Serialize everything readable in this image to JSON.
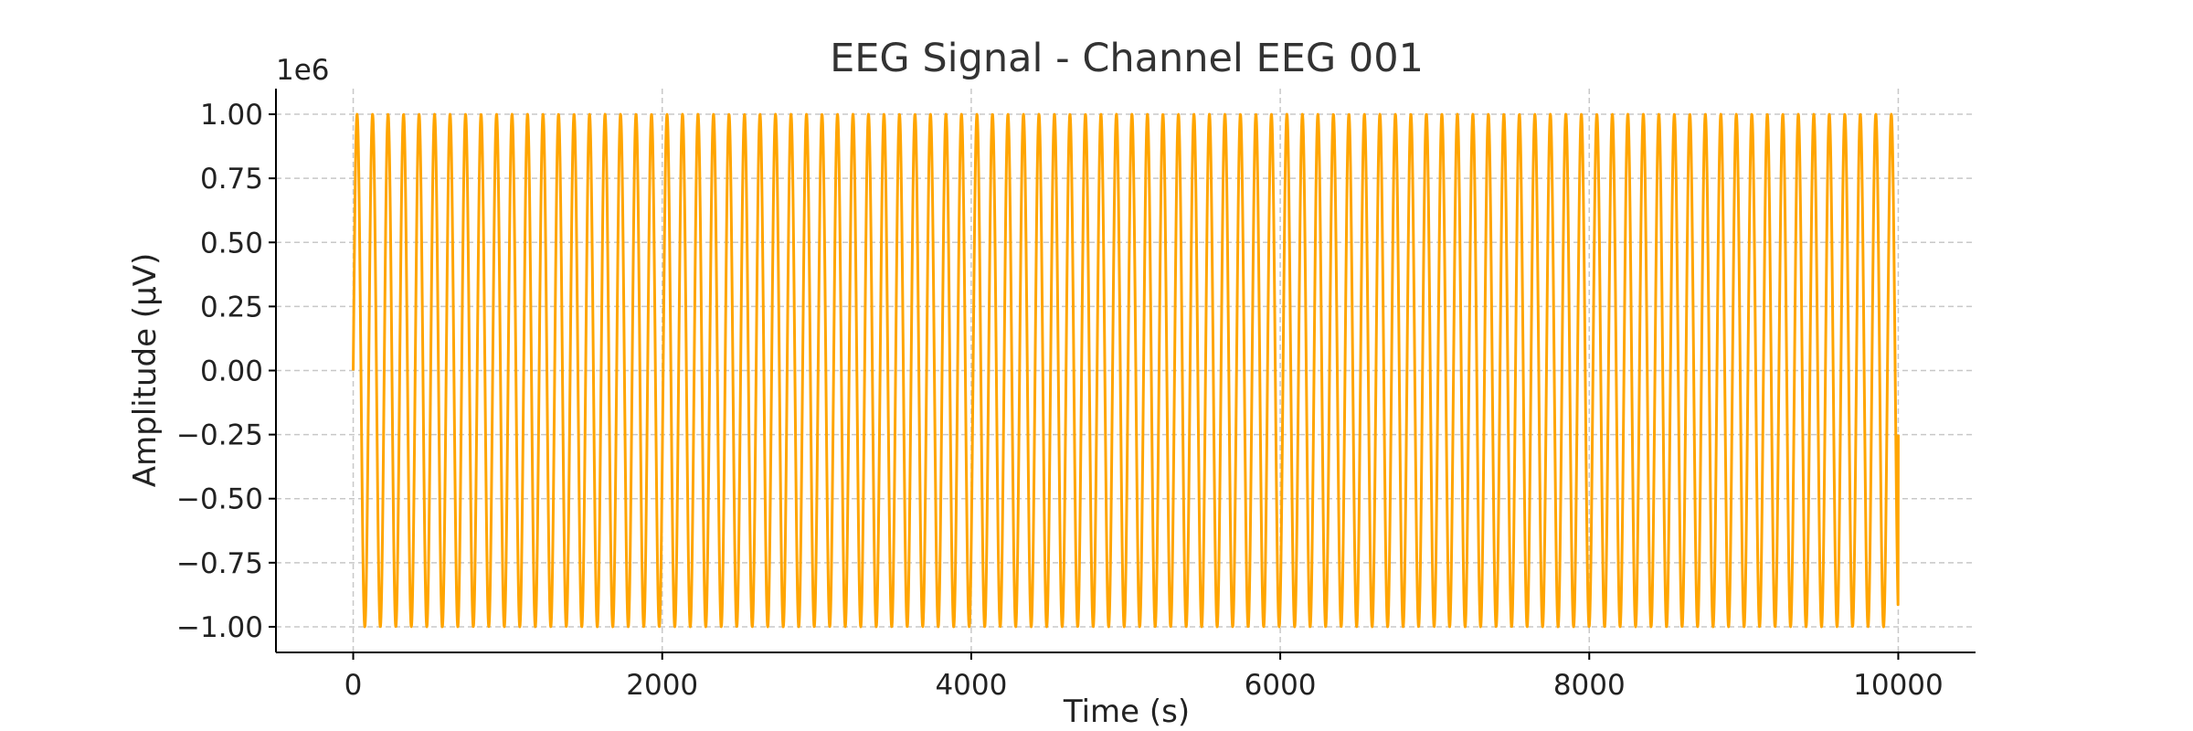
{
  "chart_data": {
    "type": "line",
    "title": "EEG Signal - Channel EEG 001",
    "xlabel": "Time (s)",
    "ylabel": "Amplitude (µV)",
    "y_offset_label": "1e6",
    "xlim": [
      -500,
      10500
    ],
    "ylim": [
      -1.1,
      1.1
    ],
    "x_ticks": [
      0,
      2000,
      4000,
      6000,
      8000,
      10000
    ],
    "x_tick_labels": [
      "0",
      "2000",
      "4000",
      "6000",
      "8000",
      "10000"
    ],
    "y_ticks": [
      1.0,
      0.75,
      0.5,
      0.25,
      0.0,
      -0.25,
      -0.5,
      -0.75,
      -1.0
    ],
    "y_tick_labels": [
      "1.00",
      "0.75",
      "0.50",
      "0.25",
      "0.00",
      "−0.25",
      "−0.50",
      "−0.75",
      "−1.00"
    ],
    "grid": true,
    "series": [
      {
        "color": "#FFA500",
        "signal": {
          "x_start": 0,
          "x_end": 10000,
          "amplitude": 1.0,
          "cycles": 99.7,
          "end_value": -0.25
        }
      }
    ]
  }
}
